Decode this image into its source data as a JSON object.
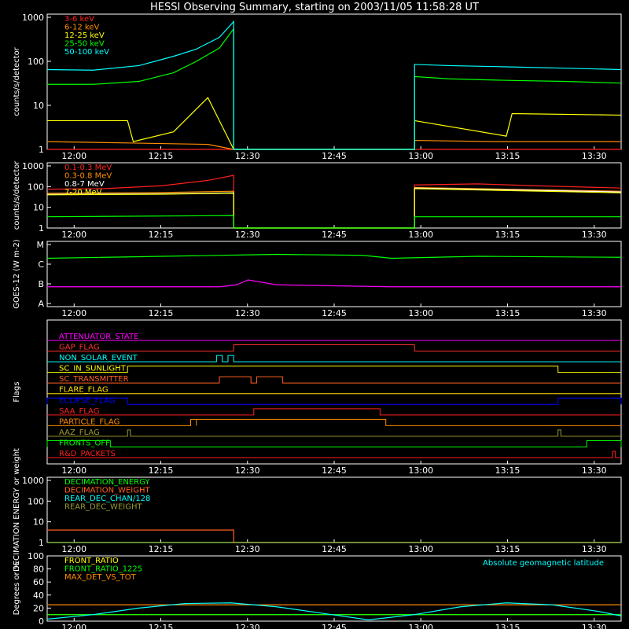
{
  "title": "HESSI Observing Summary, starting on 2003/11/05 11:58:28 UT",
  "colors": {
    "bg": "#000000",
    "axis": "#ffffff",
    "red": "#ff2020",
    "orange": "#ff8c00",
    "yellow": "#ffff00",
    "green": "#00ff00",
    "cyan": "#00ffff",
    "magenta": "#ff00ff",
    "blue": "#0000ff",
    "gold": "#ffe000",
    "olive": "#9a9a30",
    "white": "#ffffff",
    "darkorange": "#ff6020",
    "pinkred": "#ff3030"
  },
  "chart_data": [
    {
      "type": "line",
      "panel": "lowE",
      "ylabel": "counts/s/detector",
      "yscale": "log",
      "ylim": [
        1,
        1000
      ],
      "yticks": [
        "1",
        "10",
        "100",
        "1000"
      ],
      "xlim": [
        0,
        100
      ],
      "x_tick_labels": [
        "12:00",
        "12:15",
        "12:30",
        "12:45",
        "13:00",
        "13:15",
        "13:30"
      ],
      "series": [
        {
          "name": "3-6 keV",
          "color": "red",
          "x": [
            0,
            32.5,
            64,
            100
          ],
          "y": [
            1,
            1,
            1,
            1
          ]
        },
        {
          "name": "6-12 keV",
          "color": "orange",
          "x": [
            0,
            14,
            28,
            32.5,
            64,
            78,
            100
          ],
          "y": [
            1.5,
            1.4,
            1.3,
            1,
            1.6,
            1.5,
            1.5
          ]
        },
        {
          "name": "12-25 keV",
          "color": "yellow",
          "x": [
            0,
            14,
            15,
            22,
            28,
            32.5,
            64,
            80,
            81,
            100
          ],
          "y": [
            4.5,
            4.5,
            1.5,
            2.5,
            15,
            1,
            4.5,
            2,
            6.5,
            6
          ]
        },
        {
          "name": "25-50 keV",
          "color": "green",
          "x": [
            0,
            8,
            16,
            22,
            26,
            30,
            32.5,
            64,
            70,
            80,
            90,
            100
          ],
          "y": [
            30,
            30,
            35,
            55,
            100,
            200,
            550,
            45,
            40,
            37,
            35,
            32
          ]
        },
        {
          "name": "50-100 keV",
          "color": "cyan",
          "x": [
            0,
            8,
            16,
            22,
            26,
            30,
            32.5,
            64,
            70,
            80,
            90,
            100
          ],
          "y": [
            65,
            63,
            80,
            130,
            190,
            350,
            800,
            85,
            80,
            75,
            70,
            65
          ]
        }
      ]
    },
    {
      "type": "line",
      "panel": "highE",
      "ylabel": "counts/s/detector",
      "yscale": "log",
      "ylim": [
        1,
        1000
      ],
      "yticks": [
        "1",
        "10",
        "100",
        "1000"
      ],
      "series": [
        {
          "name": "0.1-0.3 MeV",
          "color": "red",
          "x": [
            0,
            10,
            20,
            28,
            32.5,
            64,
            75,
            85,
            100
          ],
          "y": [
            75,
            80,
            110,
            200,
            350,
            120,
            135,
            110,
            85
          ]
        },
        {
          "name": "0.3-0.8 MeV",
          "color": "orange",
          "x": [
            0,
            20,
            32.5,
            64,
            100
          ],
          "y": [
            48,
            52,
            60,
            90,
            60
          ]
        },
        {
          "name": "0.8-7 MeV",
          "color": "white",
          "x": [
            0,
            20,
            32.5,
            64,
            100
          ],
          "y": [
            42,
            45,
            50,
            85,
            55
          ]
        },
        {
          "name": "7-20 MeV",
          "color": "yellow",
          "x": [
            0,
            20,
            32.5,
            64,
            100
          ],
          "y": [
            40,
            43,
            48,
            80,
            50
          ]
        },
        {
          "name": "",
          "color": "green",
          "x": [
            0,
            32.5,
            64,
            100
          ],
          "y": [
            3.5,
            4,
            3.5,
            3.5
          ]
        }
      ]
    },
    {
      "type": "line",
      "panel": "goes",
      "ylabel": "GOES-12 (W m-2)",
      "yticks": [
        "A",
        "B",
        "C",
        "M"
      ],
      "series": [
        {
          "name": "",
          "color": "green",
          "x": [
            0,
            20,
            40,
            55,
            60,
            75,
            100
          ],
          "y": [
            3.3,
            3.4,
            3.5,
            3.45,
            3.3,
            3.4,
            3.35
          ]
        },
        {
          "name": "",
          "color": "magenta",
          "x": [
            0,
            30,
            33,
            35,
            40,
            60,
            100
          ],
          "y": [
            1.85,
            1.85,
            1.95,
            2.2,
            1.95,
            1.85,
            1.85
          ]
        }
      ]
    },
    {
      "type": "line",
      "panel": "flags",
      "ylabel": "Flags",
      "flags": [
        {
          "name": "ATTENUATOR_STATE",
          "color": "magenta",
          "segments": []
        },
        {
          "name": "GAP_FLAG",
          "color": "pinkred",
          "segments": [
            [
              32.5,
              64
            ]
          ]
        },
        {
          "name": "NON_SOLAR_EVENT",
          "color": "cyan",
          "segments": [
            [
              29.5,
              30.5
            ],
            [
              31.5,
              32.5
            ]
          ]
        },
        {
          "name": "SC_IN_SUNLIGHT",
          "color": "yellow",
          "segments": [
            [
              14,
              89
            ]
          ]
        },
        {
          "name": "SC_TRANSMITTER",
          "color": "darkorange",
          "segments": [
            [
              30,
              35.5
            ],
            [
              36.5,
              41
            ]
          ]
        },
        {
          "name": "FLARE_FLAG",
          "color": "gold",
          "segments": []
        },
        {
          "name": "ECLIPSE_FLAG",
          "color": "blue",
          "segments": [
            [
              0,
              14
            ],
            [
              89,
              100
            ]
          ]
        },
        {
          "name": "SAA_FLAG",
          "color": "red",
          "segments": [
            [
              36,
              58
            ]
          ]
        },
        {
          "name": "PARTICLE_FLAG",
          "color": "orange",
          "segments": [
            [
              25,
              26
            ],
            [
              26,
              59
            ]
          ]
        },
        {
          "name": "AAZ_FLAG",
          "color": "olive",
          "segments": [
            [
              14,
              14.5
            ],
            [
              89,
              89.5
            ]
          ]
        },
        {
          "name": "FRONTS_OFF",
          "color": "green",
          "segments": [
            [
              0,
              11
            ],
            [
              94,
              100
            ]
          ]
        },
        {
          "name": "R&D_PACKETS",
          "color": "red",
          "segments": [
            [
              98.5,
              99
            ]
          ]
        }
      ]
    },
    {
      "type": "line",
      "panel": "decim",
      "ylabel": "DECIMATION ENERGY or weight",
      "yscale": "log",
      "ylim": [
        1,
        1000
      ],
      "yticks": [
        "1",
        "10",
        "100",
        "1000"
      ],
      "series": [
        {
          "name": "DECIMATION_ENERGY",
          "color": "green",
          "x": [
            0,
            100
          ],
          "y": [
            1,
            1
          ]
        },
        {
          "name": "DECIMATION_WEIGHT",
          "color": "darkorange",
          "x": [
            0,
            32.5,
            32.5,
            100
          ],
          "y": [
            4,
            4,
            1,
            1
          ]
        },
        {
          "name": "REAR_DEC_CHAN/128",
          "color": "cyan",
          "x": [
            0,
            100
          ],
          "y": [
            1,
            1
          ]
        },
        {
          "name": "REAR_DEC_WEIGHT",
          "color": "olive",
          "x": [
            0,
            100
          ],
          "y": [
            1,
            1
          ]
        }
      ]
    },
    {
      "type": "line",
      "panel": "ratio",
      "ylabel": "Degrees or %",
      "ylim": [
        0,
        100
      ],
      "yticks": [
        "0",
        "20",
        "40",
        "60",
        "80",
        "100"
      ],
      "annotation": "Absolute geomagnetic latitude",
      "series": [
        {
          "name": "FRONT_RATIO",
          "color": "yellow",
          "x": [
            0,
            100
          ],
          "y": [
            10,
            10
          ]
        },
        {
          "name": "FRONT_RATIO_1225",
          "color": "green",
          "x": [
            0,
            100
          ],
          "y": [
            10,
            10
          ]
        },
        {
          "name": "MAX_DET_VS_TOT",
          "color": "orange",
          "x": [
            0,
            100
          ],
          "y": [
            25,
            25
          ]
        },
        {
          "name": "",
          "color": "cyan",
          "x": [
            0,
            8,
            16,
            24,
            32,
            40,
            48,
            56,
            64,
            72,
            80,
            88,
            96,
            100
          ],
          "y": [
            3,
            10,
            20,
            27,
            28,
            22,
            12,
            2,
            10,
            22,
            28,
            25,
            15,
            8
          ]
        }
      ]
    }
  ]
}
